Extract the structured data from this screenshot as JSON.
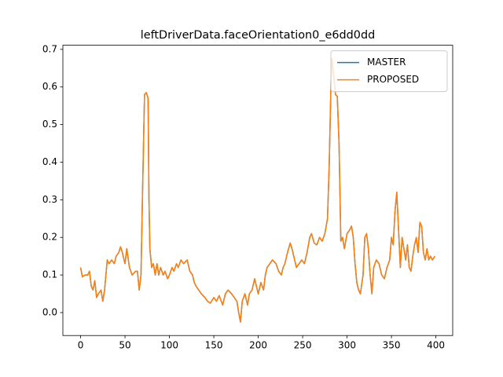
{
  "chart_data": {
    "type": "line",
    "title": "leftDriverData.faceOrientation0_e6dd0dd",
    "x": [
      0,
      2,
      5,
      8,
      10,
      12,
      14,
      16,
      18,
      20,
      23,
      25,
      27,
      30,
      32,
      35,
      38,
      40,
      43,
      45,
      47,
      50,
      52,
      55,
      58,
      60,
      62,
      64,
      66,
      68,
      70,
      72,
      74,
      76,
      77,
      78,
      80,
      82,
      84,
      86,
      88,
      90,
      93,
      95,
      98,
      100,
      103,
      105,
      108,
      110,
      113,
      116,
      120,
      123,
      126,
      128,
      130,
      133,
      136,
      140,
      143,
      146,
      150,
      153,
      156,
      160,
      163,
      166,
      170,
      173,
      176,
      178,
      180,
      182,
      185,
      188,
      190,
      193,
      196,
      198,
      200,
      203,
      206,
      208,
      210,
      213,
      216,
      220,
      223,
      226,
      228,
      230,
      233,
      236,
      238,
      240,
      243,
      246,
      249,
      252,
      255,
      258,
      260,
      263,
      266,
      269,
      272,
      275,
      278,
      280,
      282,
      283,
      285,
      287,
      289,
      291,
      293,
      295,
      297,
      300,
      303,
      305,
      307,
      309,
      311,
      313,
      315,
      318,
      320,
      322,
      324,
      326,
      328,
      330,
      333,
      336,
      339,
      342,
      345,
      348,
      350,
      352,
      354,
      356,
      358,
      360,
      362,
      364,
      366,
      368,
      370,
      372,
      374,
      376,
      378,
      380,
      382,
      384,
      386,
      388,
      390,
      392,
      394,
      396,
      399
    ],
    "series": [
      {
        "name": "MASTER",
        "color": "#1f77b4",
        "values": [
          0.12,
          0.095,
          0.1,
          0.1,
          0.11,
          0.07,
          0.06,
          0.085,
          0.04,
          0.05,
          0.06,
          0.03,
          0.06,
          0.14,
          0.13,
          0.14,
          0.13,
          0.15,
          0.16,
          0.175,
          0.16,
          0.13,
          0.17,
          0.12,
          0.1,
          0.105,
          0.11,
          0.11,
          0.06,
          0.1,
          0.35,
          0.58,
          0.585,
          0.57,
          0.3,
          0.17,
          0.12,
          0.13,
          0.1,
          0.13,
          0.1,
          0.12,
          0.1,
          0.11,
          0.09,
          0.1,
          0.12,
          0.11,
          0.13,
          0.12,
          0.14,
          0.13,
          0.14,
          0.11,
          0.1,
          0.08,
          0.07,
          0.06,
          0.05,
          0.04,
          0.03,
          0.025,
          0.04,
          0.03,
          0.045,
          0.02,
          0.05,
          0.06,
          0.05,
          0.04,
          0.03,
          0,
          -0.025,
          0.03,
          0.05,
          0.02,
          0.05,
          0.06,
          0.09,
          0.07,
          0.05,
          0.08,
          0.06,
          0.1,
          0.12,
          0.13,
          0.14,
          0.13,
          0.11,
          0.1,
          0.12,
          0.13,
          0.16,
          0.185,
          0.17,
          0.15,
          0.12,
          0.13,
          0.14,
          0.13,
          0.16,
          0.2,
          0.21,
          0.185,
          0.18,
          0.2,
          0.19,
          0.21,
          0.25,
          0.4,
          0.62,
          0.675,
          0.63,
          0.58,
          0.575,
          0.45,
          0.19,
          0.2,
          0.17,
          0.21,
          0.22,
          0.23,
          0.2,
          0.13,
          0.08,
          0.06,
          0.05,
          0.1,
          0.2,
          0.21,
          0.17,
          0.1,
          0.05,
          0.12,
          0.14,
          0.13,
          0.1,
          0.09,
          0.12,
          0.14,
          0.2,
          0.18,
          0.27,
          0.32,
          0.22,
          0.12,
          0.2,
          0.17,
          0.14,
          0.18,
          0.12,
          0.11,
          0.15,
          0.18,
          0.2,
          0.16,
          0.24,
          0.23,
          0.16,
          0.14,
          0.17,
          0.14,
          0.15,
          0.14,
          0.15
        ]
      },
      {
        "name": "PROPOSED",
        "color": "#ff7f0e",
        "values": [
          0.12,
          0.095,
          0.1,
          0.1,
          0.11,
          0.07,
          0.06,
          0.085,
          0.04,
          0.05,
          0.06,
          0.03,
          0.06,
          0.14,
          0.13,
          0.14,
          0.13,
          0.15,
          0.16,
          0.175,
          0.16,
          0.13,
          0.17,
          0.12,
          0.1,
          0.105,
          0.11,
          0.11,
          0.06,
          0.1,
          0.35,
          0.58,
          0.585,
          0.57,
          0.3,
          0.17,
          0.12,
          0.13,
          0.1,
          0.13,
          0.1,
          0.12,
          0.1,
          0.11,
          0.09,
          0.1,
          0.12,
          0.11,
          0.13,
          0.12,
          0.14,
          0.13,
          0.14,
          0.11,
          0.1,
          0.08,
          0.07,
          0.06,
          0.05,
          0.04,
          0.03,
          0.025,
          0.04,
          0.03,
          0.045,
          0.02,
          0.05,
          0.06,
          0.05,
          0.04,
          0.03,
          0,
          -0.025,
          0.03,
          0.05,
          0.02,
          0.05,
          0.06,
          0.09,
          0.07,
          0.05,
          0.08,
          0.06,
          0.1,
          0.12,
          0.13,
          0.14,
          0.13,
          0.11,
          0.1,
          0.12,
          0.13,
          0.16,
          0.185,
          0.17,
          0.15,
          0.12,
          0.13,
          0.14,
          0.13,
          0.16,
          0.2,
          0.21,
          0.185,
          0.18,
          0.2,
          0.19,
          0.21,
          0.25,
          0.4,
          0.62,
          0.675,
          0.63,
          0.58,
          0.575,
          0.45,
          0.19,
          0.2,
          0.17,
          0.21,
          0.22,
          0.23,
          0.2,
          0.13,
          0.08,
          0.06,
          0.05,
          0.1,
          0.2,
          0.21,
          0.17,
          0.1,
          0.05,
          0.12,
          0.14,
          0.13,
          0.1,
          0.09,
          0.12,
          0.14,
          0.2,
          0.18,
          0.27,
          0.32,
          0.22,
          0.12,
          0.2,
          0.17,
          0.14,
          0.18,
          0.12,
          0.11,
          0.15,
          0.18,
          0.2,
          0.16,
          0.24,
          0.23,
          0.16,
          0.14,
          0.17,
          0.14,
          0.15,
          0.14,
          0.15
        ]
      }
    ],
    "xlim": [
      -19.95,
      418.95
    ],
    "xticks": [
      0,
      50,
      100,
      150,
      200,
      250,
      300,
      350,
      400
    ],
    "ylim": [
      -0.061,
      0.711
    ],
    "yticks": [
      {
        "value": 0,
        "label": "0.0"
      },
      0.1,
      0.2,
      0.3,
      0.4,
      0.5,
      0.6,
      0.7
    ],
    "grid": false,
    "legend": "upper right"
  }
}
